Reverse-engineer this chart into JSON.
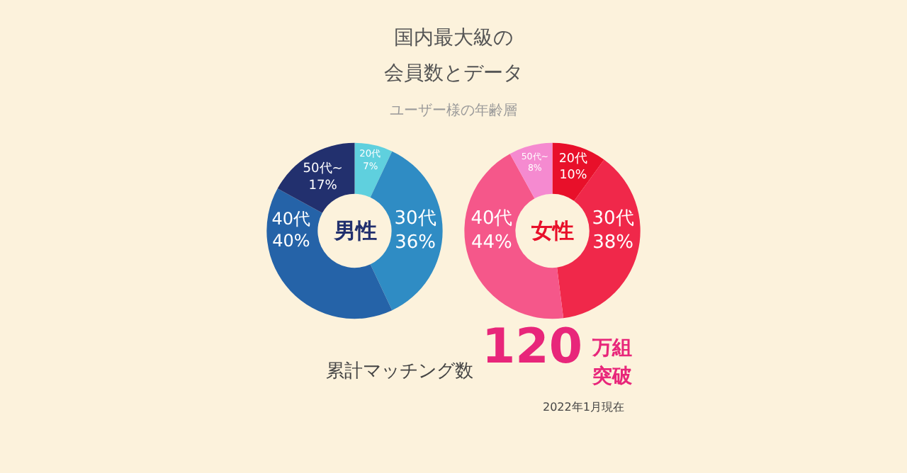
{
  "chart_data": [
    {
      "type": "donut",
      "title": "国内最大級の",
      "subtitle": "会員数とデータ",
      "annotations": [
        "男性",
        "ユーザー様の年齢層"
      ],
      "categories": [
        "20代",
        "30代",
        "40代",
        "50代~"
      ],
      "values": [
        7,
        36,
        40,
        17
      ],
      "value_labels": [
        "7%",
        "36%",
        "40%",
        "17%"
      ],
      "colors": [
        "#5fd0de",
        "#2f8cc4",
        "#2563a8",
        "#22306e"
      ],
      "legend": false
    },
    {
      "type": "donut",
      "annotations": [
        "女性"
      ],
      "categories": [
        "20代",
        "30代",
        "40代",
        "50代~"
      ],
      "values": [
        10,
        38,
        44,
        8
      ],
      "value_labels": [
        "10%",
        "38%",
        "44%",
        "8%"
      ],
      "colors": [
        "#e8102a",
        "#f0284a",
        "#f5578a",
        "#f58ad0"
      ],
      "legend": false
    },
    {
      "type": "other",
      "annotations": [
        "累計マッチング数",
        "120",
        "万組",
        "突破",
        "2022年1月現在"
      ]
    }
  ]
}
